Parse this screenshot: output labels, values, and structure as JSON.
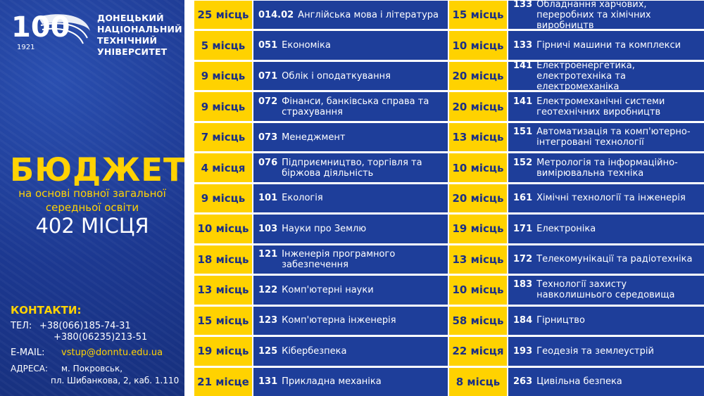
{
  "header": {
    "logo_number": "100",
    "logo_year": "1921",
    "university_lines": [
      "ДОНЕЦЬКИЙ",
      "НАЦІОНАЛЬНИЙ",
      "ТЕХНІЧНИЙ",
      "УНІВЕРСИТЕТ"
    ]
  },
  "promo": {
    "title": "БЮДЖЕТ",
    "subtitle_line1": "на основі повної загальної",
    "subtitle_line2": "середньої освіти",
    "total": "402 МІСЦЯ"
  },
  "contacts": {
    "heading": "КОНТАКТИ:",
    "tel_label": "ТЕЛ:",
    "tel1": "+38(066)185-74-31",
    "tel2": "+380(06235)213-51",
    "email_label": "E-MAIL:",
    "email": "vstup@donntu.edu.ua",
    "address_label": "АДРЕСА:",
    "address_line1": "м. Покровськ,",
    "address_line2": "пл. Шибанкова, 2, каб. 1.110"
  },
  "left_column": [
    {
      "seats": "25 місць",
      "code": "014.02",
      "name": "Англійська мова і література"
    },
    {
      "seats": "5 місць",
      "code": "051",
      "name": "Економіка"
    },
    {
      "seats": "9 місць",
      "code": "071",
      "name": "Облік і оподаткування"
    },
    {
      "seats": "9 місць",
      "code": "072",
      "name": "Фінанси, банківська справа та страхування"
    },
    {
      "seats": "7 місць",
      "code": "073",
      "name": "Менеджмент"
    },
    {
      "seats": "4 місця",
      "code": "076",
      "name": "Підприємництво, торгівля та біржова діяльність"
    },
    {
      "seats": "9 місць",
      "code": "101",
      "name": "Екологія"
    },
    {
      "seats": "10 місць",
      "code": "103",
      "name": "Науки про Землю"
    },
    {
      "seats": "18 місць",
      "code": "121",
      "name": "Інженерія програмного забезпечення"
    },
    {
      "seats": "13 місць",
      "code": "122",
      "name": "Комп'ютерні науки"
    },
    {
      "seats": "15 місць",
      "code": "123",
      "name": "Комп'ютерна інженерія"
    },
    {
      "seats": "19 місць",
      "code": "125",
      "name": "Кібербезпека"
    },
    {
      "seats": "21 місце",
      "code": "131",
      "name": "Прикладна механіка"
    }
  ],
  "right_column": [
    {
      "seats": "15 місць",
      "code": "133",
      "name": "Обладнання харчових, переробних та хімічних виробництв"
    },
    {
      "seats": "10 місць",
      "code": "133",
      "name": "Гірничі машини та комплекси"
    },
    {
      "seats": "20 місць",
      "code": "141",
      "name": "Електроенергетика, електротехніка та електромеханіка"
    },
    {
      "seats": "20 місць",
      "code": "141",
      "name": "Електромеханічні системи геотехнічних виробництв"
    },
    {
      "seats": "13 місць",
      "code": "151",
      "name": "Автоматизація та комп'ютерно-інтегровані технології"
    },
    {
      "seats": "10 місць",
      "code": "152",
      "name": "Метрологія та інформаційно-вимірювальна техніка"
    },
    {
      "seats": "20 місць",
      "code": "161",
      "name": "Хімічні технології та інженерія"
    },
    {
      "seats": "19 місць",
      "code": "171",
      "name": "Електроніка"
    },
    {
      "seats": "13 місць",
      "code": "172",
      "name": "Телекомунікації та радіотехніка"
    },
    {
      "seats": "10 місць",
      "code": "183",
      "name": "Технології захисту навколишнього середовища"
    },
    {
      "seats": "58 місць",
      "code": "184",
      "name": "Гірництво"
    },
    {
      "seats": "22 місця",
      "code": "193",
      "name": "Геодезія та землеустрій"
    },
    {
      "seats": "8 місць",
      "code": "263",
      "name": "Цивільна безпека"
    }
  ],
  "colors": {
    "yellow": "#ffd200",
    "blue": "#1e3e9a",
    "navy_text": "#1a2f86"
  }
}
